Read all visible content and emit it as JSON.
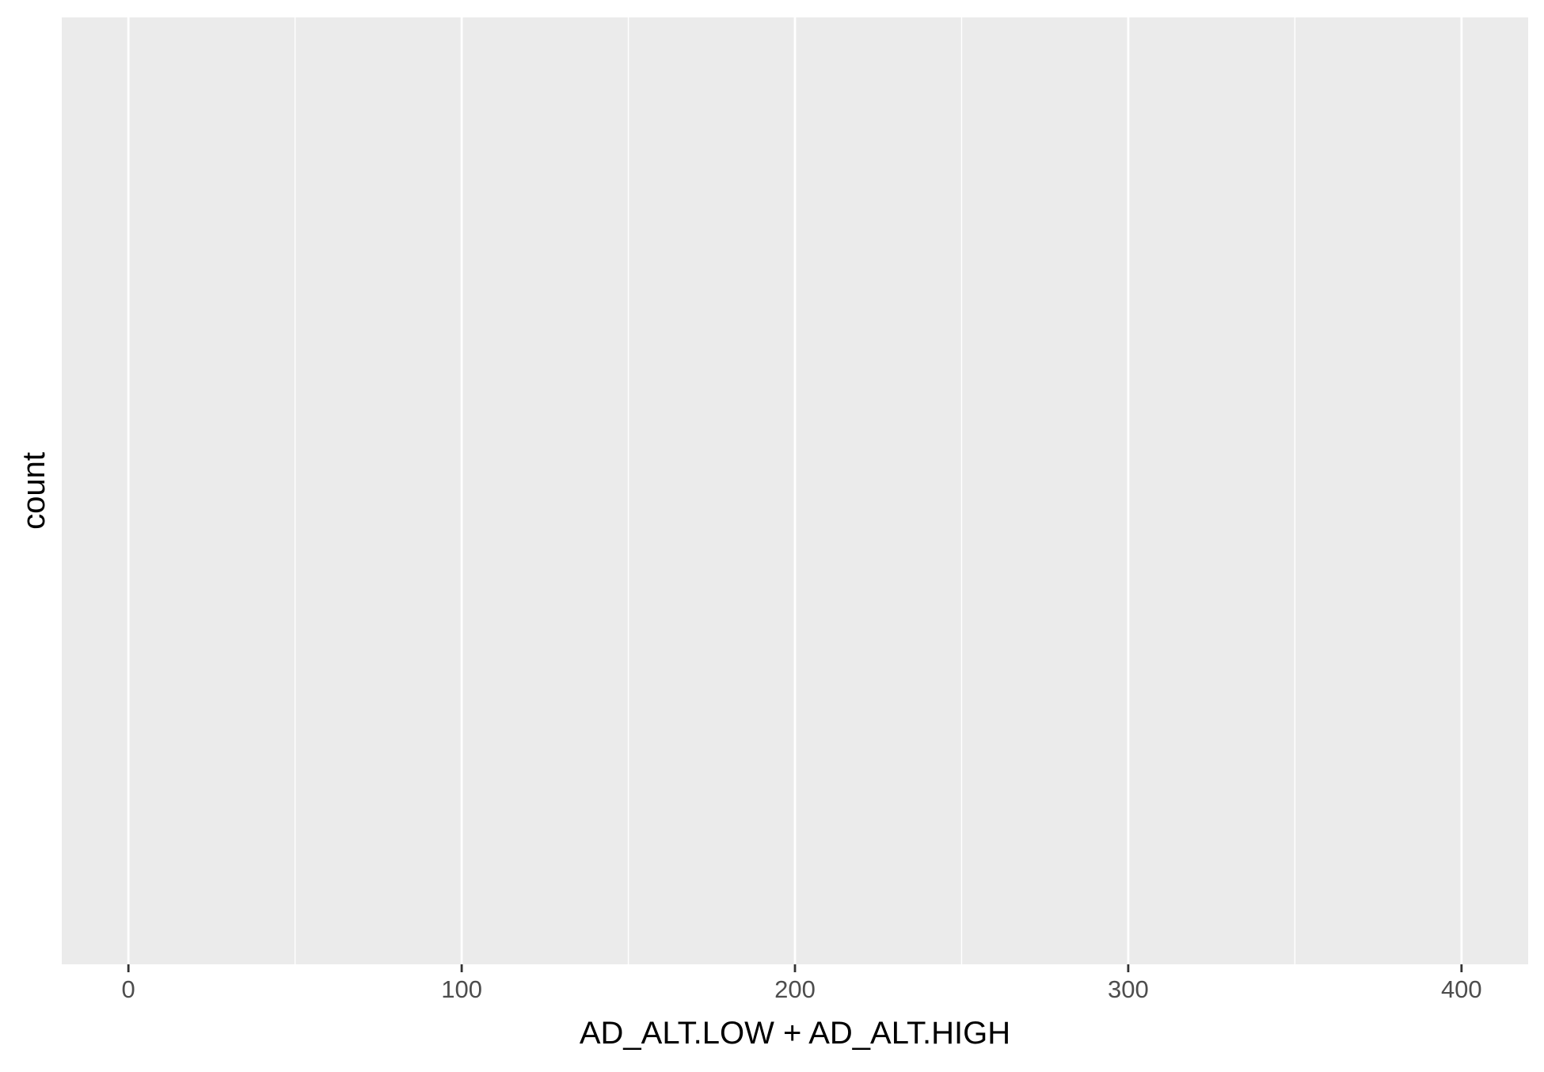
{
  "chart_data": {
    "type": "bar",
    "title": "",
    "xlabel": "AD_ALT.LOW + AD_ALT.HIGH",
    "ylabel": "count",
    "xlim": [
      -20,
      420
    ],
    "x_major_ticks": [
      0,
      100,
      200,
      300,
      400
    ],
    "x_tick_labels": [
      "0",
      "100",
      "200",
      "300",
      "400"
    ],
    "x_minor_ticks": [
      50,
      150,
      250,
      350
    ],
    "y_ticks": [],
    "values": [],
    "grid": true,
    "legend": "none",
    "colors": {
      "panel_background": "#ebebeb",
      "grid_line": "#ffffff",
      "tick_label": "#4d4d4d",
      "axis_title": "#000000",
      "tick_mark": "#333333"
    }
  }
}
